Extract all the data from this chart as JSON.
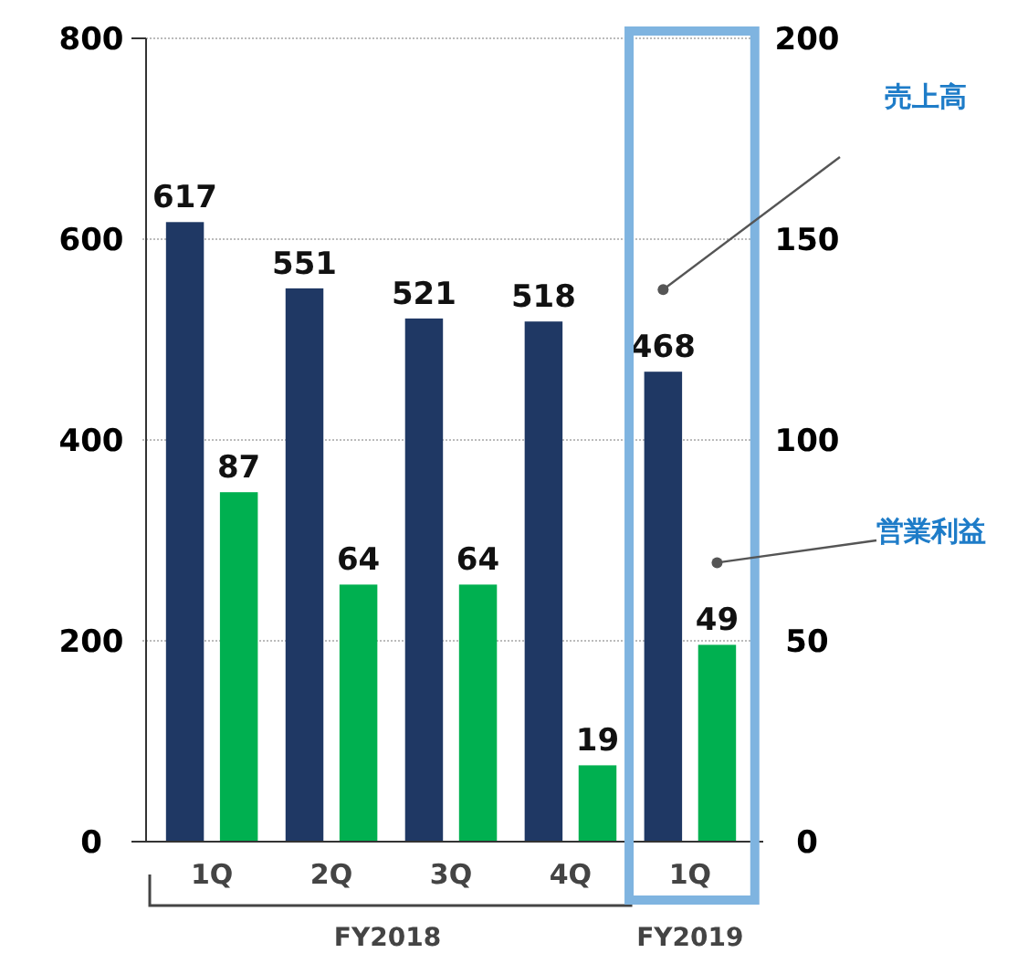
{
  "chart_data": {
    "type": "bar",
    "categories": [
      "1Q",
      "2Q",
      "3Q",
      "4Q",
      "1Q"
    ],
    "series": [
      {
        "name": "売上高",
        "color": "#1f3864",
        "values": [
          617,
          551,
          521,
          518,
          468
        ]
      },
      {
        "name": "営業利益",
        "color": "#00b050",
        "values": [
          87,
          64,
          64,
          19,
          49
        ],
        "axis": "y2"
      }
    ],
    "ylim": [
      0,
      800
    ],
    "yticks": [
      0,
      200,
      400,
      600,
      800
    ],
    "y2lim": [
      0,
      200
    ],
    "y2ticks": [
      0,
      50,
      100,
      150,
      200
    ],
    "grid": "y",
    "legend": "right",
    "data_labels": true,
    "annotations": [
      "FY2018",
      "FY2019"
    ]
  }
}
